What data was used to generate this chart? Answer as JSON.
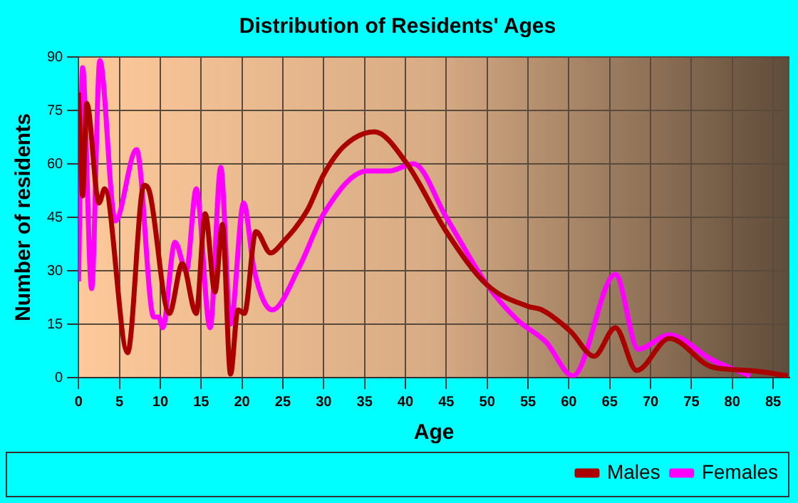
{
  "chart_data": {
    "type": "line",
    "title": "Distribution of Residents' Ages",
    "xlabel": "Age",
    "ylabel": "Number of residents",
    "xlim": [
      0,
      87
    ],
    "xticks": [
      0,
      5,
      10,
      15,
      20,
      25,
      30,
      35,
      40,
      45,
      50,
      55,
      60,
      65,
      70,
      75,
      80,
      85
    ],
    "ylim": [
      0,
      90
    ],
    "yticks": [
      0,
      15,
      30,
      45,
      60,
      75,
      90
    ],
    "grid": true,
    "legend": "bottom right",
    "marker": "none",
    "line_style": "solid",
    "series": [
      {
        "name": "Males",
        "color": "#aa0000",
        "x": [
          0,
          0.5,
          1,
          2.5,
          3.2,
          6,
          8,
          8.7,
          11.1,
          12.7,
          14.4,
          15.5,
          16.7,
          17.6,
          18.6,
          19.5,
          20.3,
          21.7,
          23.5,
          25,
          28,
          30,
          32.5,
          36.2,
          40.2,
          45,
          50,
          55,
          56.7,
          60.2,
          63.1,
          65.7,
          68.3,
          72.3,
          77.5,
          82.2,
          86.8
        ],
        "values": [
          80,
          51,
          77,
          49,
          53,
          7,
          54,
          52,
          18,
          32,
          18,
          46,
          24,
          43,
          1,
          19,
          18,
          41,
          35,
          38,
          47,
          57,
          65,
          69,
          60,
          41,
          26,
          20,
          19,
          13,
          6,
          14,
          2,
          11,
          3,
          2,
          0.5
        ]
      },
      {
        "name": "Females",
        "color": "#ff00ff",
        "x": [
          0,
          0.5,
          1.6,
          2.6,
          4.5,
          7.1,
          9.2,
          9.8,
          10.3,
          11.8,
          13.2,
          14.4,
          16.1,
          17.4,
          18.6,
          20.2,
          21.5,
          23.7,
          27,
          30,
          35.3,
          38,
          41,
          45,
          50,
          53.8,
          57.2,
          60.5,
          65.7,
          68.5,
          72.3,
          77.5,
          82.2
        ],
        "values": [
          27,
          87,
          25,
          89,
          44,
          64,
          17,
          17,
          14,
          38,
          30,
          53,
          14,
          59,
          15,
          49,
          30,
          19,
          31,
          46,
          58,
          58,
          60,
          45,
          26,
          16,
          10,
          0.5,
          29,
          8,
          12,
          5,
          0.5
        ]
      }
    ]
  }
}
